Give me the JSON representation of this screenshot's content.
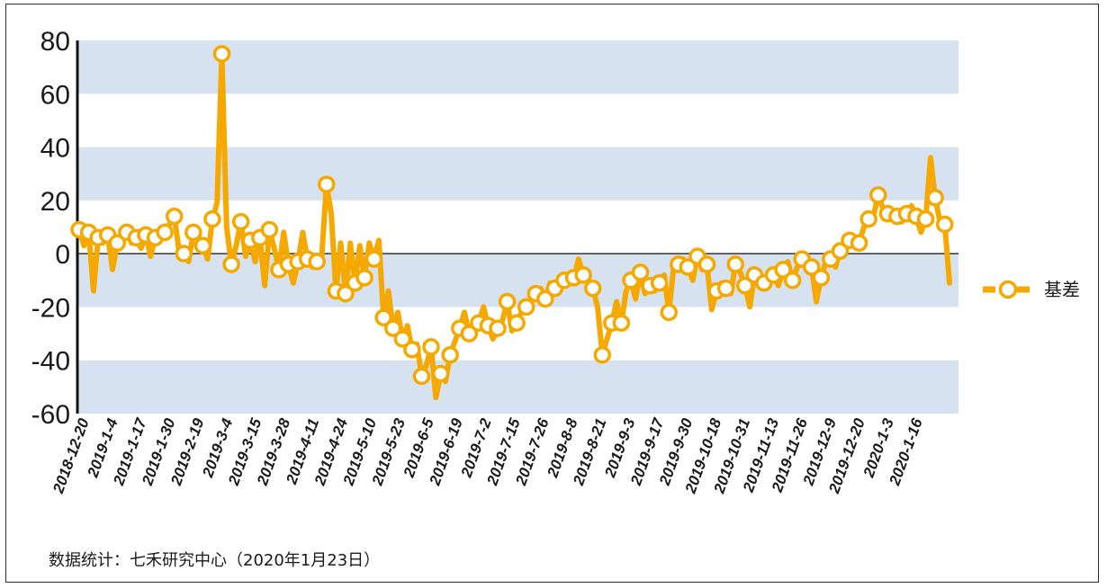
{
  "chart_data": {
    "type": "line",
    "title": "",
    "xlabel": "",
    "ylabel": "",
    "ylim": [
      -60,
      80
    ],
    "yticks": [
      -60,
      -40,
      -20,
      0,
      20,
      40,
      60,
      80
    ],
    "grid": "alternating horizontal bands",
    "legend_position": "right",
    "x_tick_labels": [
      "2018-12-20",
      "2019-1-4",
      "2019-1-17",
      "2019-1-30",
      "2019-2-19",
      "2019-3-4",
      "2019-3-15",
      "2019-3-28",
      "2019-4-11",
      "2019-4-24",
      "2019-5-10",
      "2019-5-23",
      "2019-6-5",
      "2019-6-19",
      "2019-7-2",
      "2019-7-15",
      "2019-7-26",
      "2019-8-8",
      "2019-8-21",
      "2019-9-3",
      "2019-9-17",
      "2019-9-30",
      "2019-10-18",
      "2019-10-31",
      "2019-11-13",
      "2019-11-26",
      "2019-12-9",
      "2019-12-20",
      "2020-1-3",
      "2020-1-16"
    ],
    "series": [
      {
        "name": "基差",
        "color": "#F5A800",
        "values": [
          9,
          3,
          8,
          -14,
          6,
          4,
          7,
          -6,
          4,
          5,
          8,
          4,
          6,
          2,
          7,
          -1,
          6,
          5,
          8,
          11,
          14,
          1,
          0,
          -3,
          8,
          7,
          3,
          -2,
          13,
          19,
          75,
          10,
          -4,
          3,
          12,
          -1,
          5,
          -3,
          6,
          -12,
          9,
          2,
          -6,
          8,
          -4,
          -11,
          -3,
          8,
          -2,
          -5,
          -3,
          -1,
          26,
          15,
          -14,
          4,
          -15,
          4,
          -11,
          3,
          -9,
          4,
          -2,
          5,
          -24,
          -14,
          -28,
          -22,
          -32,
          -27,
          -36,
          -34,
          -46,
          -42,
          -35,
          -54,
          -45,
          -48,
          -38,
          -33,
          -28,
          -22,
          -30,
          -25,
          -26,
          -20,
          -27,
          -32,
          -28,
          -25,
          -18,
          -29,
          -26,
          -22,
          -20,
          -18,
          -15,
          -13,
          -17,
          -11,
          -13,
          -12,
          -10,
          -8,
          -9,
          -2,
          -8,
          -10,
          -13,
          -20,
          -38,
          -32,
          -26,
          -18,
          -26,
          -14,
          -10,
          -17,
          -7,
          -15,
          -12,
          -14,
          -11,
          -8,
          -22,
          -5,
          -4,
          -2,
          -5,
          -10,
          -1,
          -6,
          -4,
          -21,
          -14,
          -11,
          -13,
          -15,
          -4,
          -7,
          -12,
          -20,
          -8,
          -12,
          -11,
          -10,
          -8,
          -12,
          -6,
          -3,
          -10,
          -5,
          -2,
          -1,
          -5,
          -18,
          -9,
          -3,
          -2,
          -5,
          1,
          3,
          5,
          4,
          4,
          10,
          13,
          14,
          22,
          17,
          15,
          15,
          14,
          12,
          15,
          18,
          14,
          8,
          13,
          36,
          21,
          12,
          11,
          -11
        ],
        "marker_indices": [
          0,
          2,
          4,
          6,
          8,
          10,
          12,
          14,
          16,
          18,
          20,
          22,
          24,
          26,
          28,
          30,
          32,
          34,
          36,
          38,
          40,
          42,
          44,
          46,
          48,
          50,
          52,
          54,
          56,
          58,
          60,
          62,
          64,
          66,
          68,
          70,
          72,
          74,
          76,
          78,
          80,
          82,
          84,
          86,
          88,
          90,
          92,
          94,
          96,
          98,
          100,
          102,
          104,
          106,
          108,
          110,
          112,
          114,
          116,
          118,
          120,
          122,
          124,
          126,
          128,
          130,
          132,
          134,
          136,
          138,
          140,
          142,
          144,
          146,
          148,
          150,
          152,
          154,
          156,
          158,
          160,
          162,
          164,
          166,
          168,
          170,
          172,
          174,
          176,
          178,
          180,
          182
        ]
      }
    ]
  },
  "source_note": "数据统计：七禾研究中心（2020年1月23日）"
}
